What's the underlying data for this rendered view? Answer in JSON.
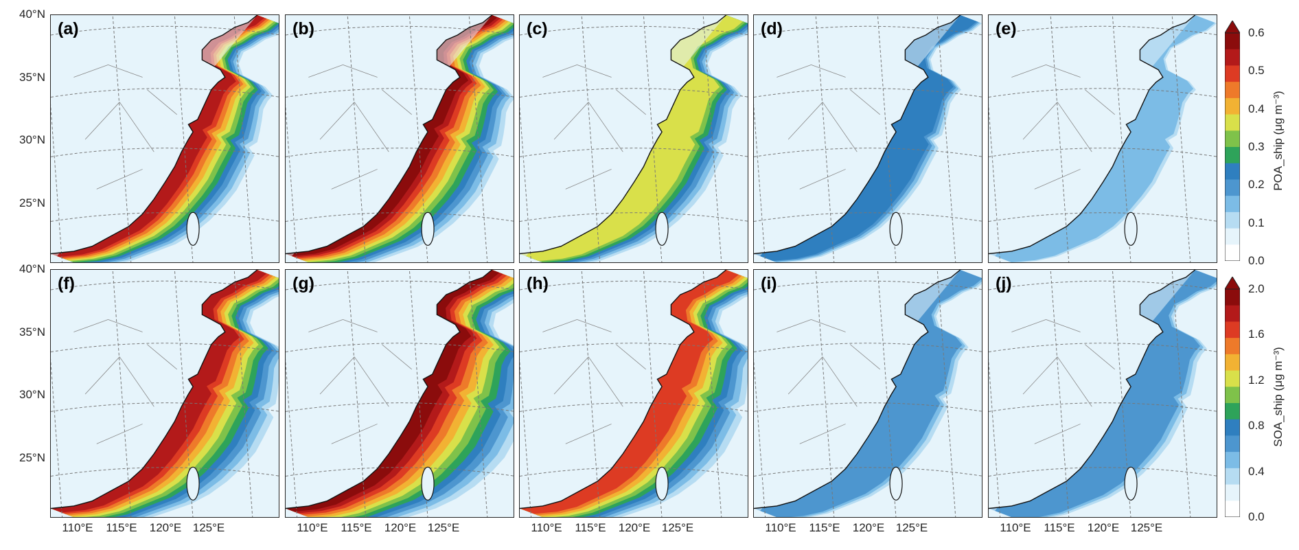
{
  "panels": [
    {
      "label": "(a)",
      "row": 0,
      "col": 0,
      "intensity": 0.95,
      "spread": 0.65
    },
    {
      "label": "(b)",
      "row": 0,
      "col": 1,
      "intensity": 1.0,
      "spread": 0.75
    },
    {
      "label": "(c)",
      "row": 0,
      "col": 2,
      "intensity": 0.6,
      "spread": 0.65
    },
    {
      "label": "(d)",
      "row": 0,
      "col": 3,
      "intensity": 0.3,
      "spread": 0.45
    },
    {
      "label": "(e)",
      "row": 0,
      "col": 4,
      "intensity": 0.18,
      "spread": 0.45
    },
    {
      "label": "(f)",
      "row": 1,
      "col": 0,
      "intensity": 0.95,
      "spread": 0.85
    },
    {
      "label": "(g)",
      "row": 1,
      "col": 1,
      "intensity": 1.0,
      "spread": 1.0
    },
    {
      "label": "(h)",
      "row": 1,
      "col": 2,
      "intensity": 0.85,
      "spread": 0.85
    },
    {
      "label": "(i)",
      "row": 1,
      "col": 3,
      "intensity": 0.25,
      "spread": 0.55
    },
    {
      "label": "(j)",
      "row": 1,
      "col": 4,
      "intensity": 0.28,
      "spread": 0.6
    }
  ],
  "lat_ticks": [
    "40°N",
    "35°N",
    "30°N",
    "25°N"
  ],
  "lon_ticks": [
    "110°E",
    "115°E",
    "120°E",
    "125°E"
  ],
  "colorbars": [
    {
      "title": "POA_ship (μg m⁻³)",
      "ticks": [
        "0.6",
        "0.5",
        "0.4",
        "0.3",
        "0.2",
        "0.1",
        "0.0"
      ]
    },
    {
      "title": "SOA_ship (μg m⁻³)",
      "ticks": [
        "2.0",
        "1.6",
        "1.2",
        "0.8",
        "0.4",
        "0.0"
      ]
    }
  ],
  "colors": [
    "#ffffff",
    "#e6f4fb",
    "#b6dcf2",
    "#7cbce6",
    "#4d96cf",
    "#2f7fbf",
    "#2ea35a",
    "#7fc24a",
    "#d9e04a",
    "#f2b233",
    "#ee7a2a",
    "#dd3b23",
    "#b31a1a",
    "#8b0c0c"
  ]
}
